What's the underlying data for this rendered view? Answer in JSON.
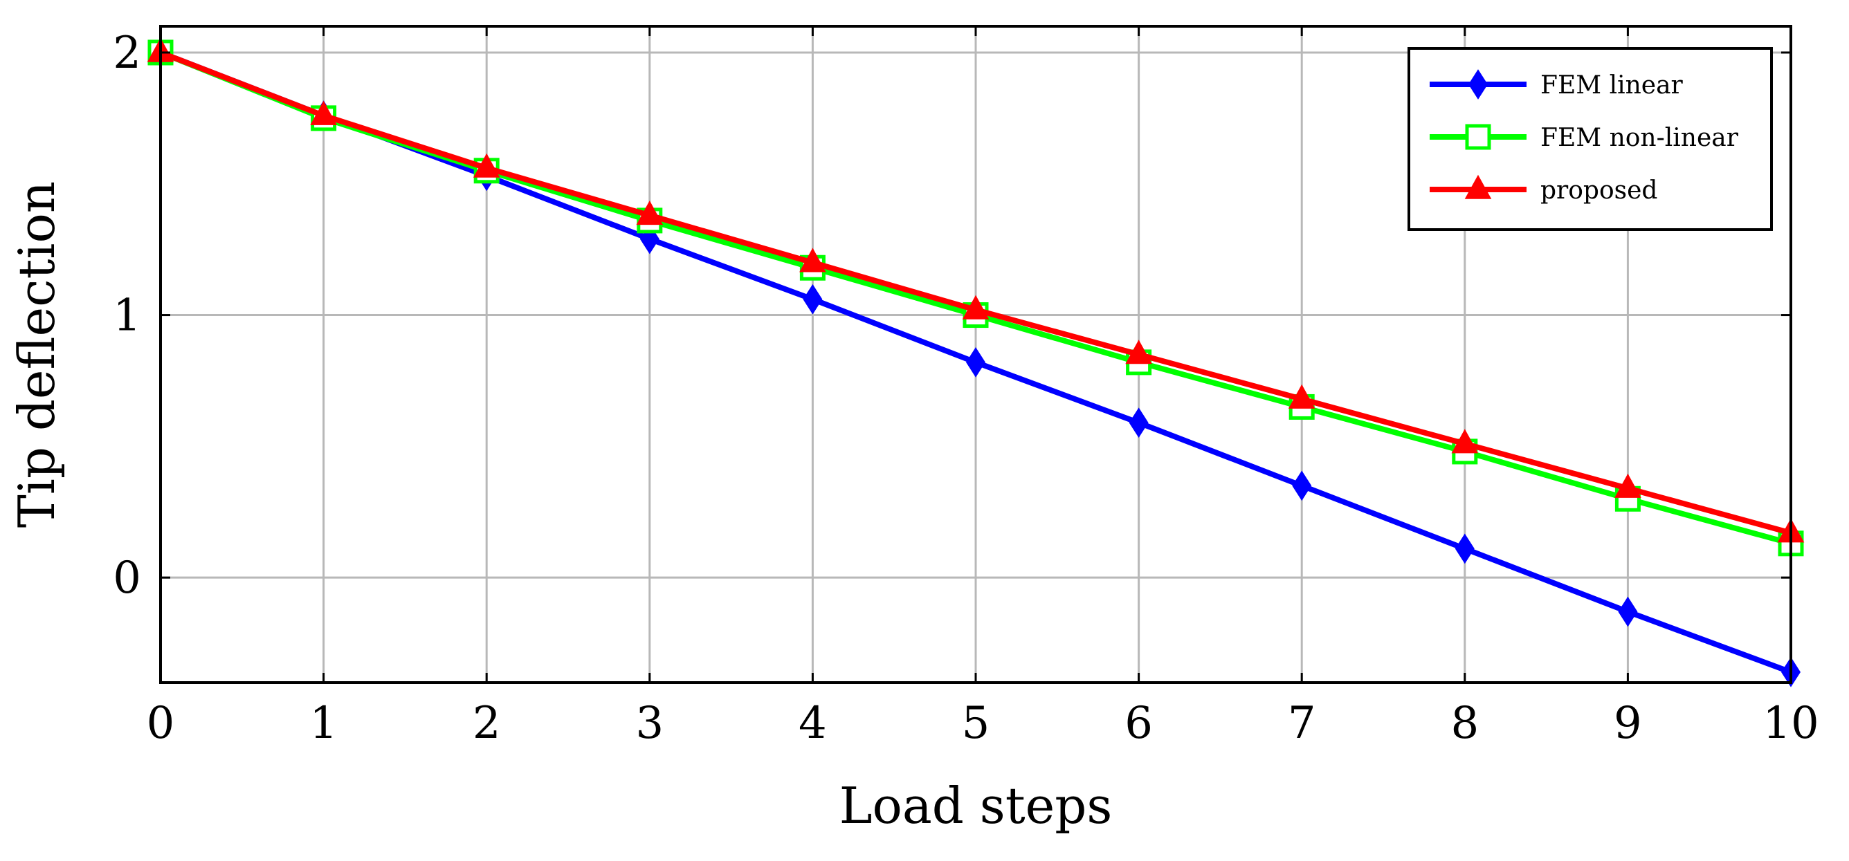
{
  "chart_data": {
    "type": "line",
    "title": "",
    "xlabel": "Load steps",
    "ylabel": "Tip deflection",
    "xlim": [
      0,
      10
    ],
    "ylim": [
      -0.4,
      2.1
    ],
    "x": [
      0,
      1,
      2,
      3,
      4,
      5,
      6,
      7,
      8,
      9,
      10
    ],
    "x_ticks": [
      "0",
      "1",
      "2",
      "3",
      "4",
      "5",
      "6",
      "7",
      "8",
      "9",
      "10"
    ],
    "y_ticks": [
      {
        "value": 0,
        "label": "0"
      },
      {
        "value": 1,
        "label": "1"
      },
      {
        "value": 2,
        "label": "2"
      }
    ],
    "grid": true,
    "legend_position": "top-right",
    "series": [
      {
        "name": "FEM linear",
        "color": "#0000ff",
        "marker": "diamond",
        "values": [
          2.0,
          1.76,
          1.53,
          1.29,
          1.06,
          0.82,
          0.59,
          0.35,
          0.11,
          -0.13,
          -0.36
        ]
      },
      {
        "name": "FEM non-linear",
        "color": "#00ff00",
        "marker": "square",
        "values": [
          2.0,
          1.75,
          1.55,
          1.36,
          1.18,
          1.0,
          0.82,
          0.65,
          0.48,
          0.3,
          0.13
        ]
      },
      {
        "name": "proposed",
        "color": "#ff0000",
        "marker": "triangle",
        "values": [
          2.0,
          1.76,
          1.56,
          1.38,
          1.2,
          1.02,
          0.85,
          0.68,
          0.51,
          0.34,
          0.17
        ]
      }
    ]
  }
}
